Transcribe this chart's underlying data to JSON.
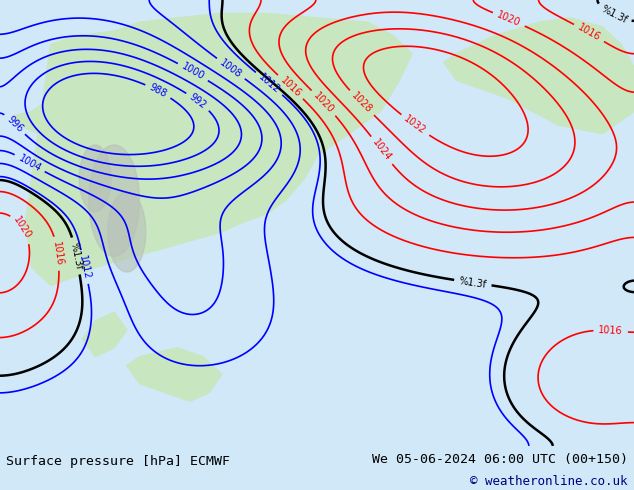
{
  "title_left": "Surface pressure [hPa] ECMWF",
  "title_right": "We 05-06-2024 06:00 UTC (00+150)",
  "copyright": "© weatheronline.co.uk",
  "bg_color": "#d0e8f8",
  "land_color": "#c8e6c0",
  "figure_width": 6.34,
  "figure_height": 4.9,
  "dpi": 100,
  "bottom_bar_color": "#e8e8e8",
  "title_fontsize": 9.5,
  "copyright_fontsize": 9.0,
  "copyright_color": "#000080"
}
